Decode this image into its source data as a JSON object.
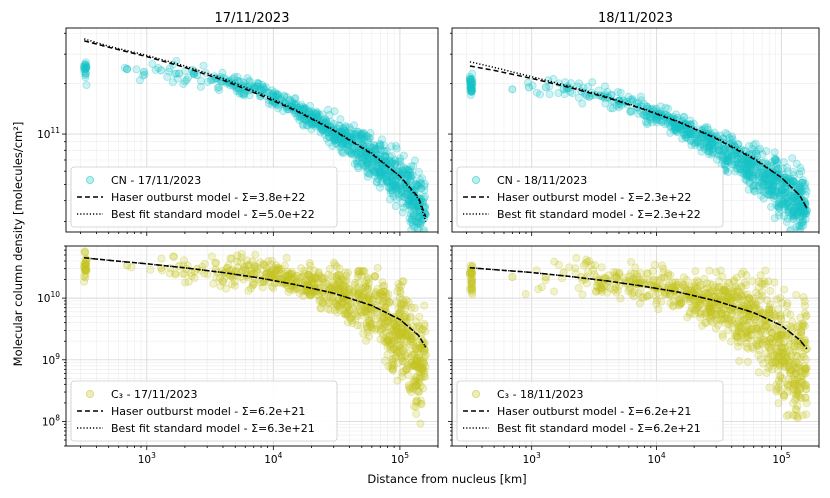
{
  "figure": {
    "ylabel": "Molecular column density [molecules/cm²]",
    "xlabel": "Distance from nucleus [km]"
  },
  "colors": {
    "cn": "#17c2c7",
    "c3": "#c3c41f",
    "model": "#000000"
  },
  "chart_data": [
    {
      "type": "scatter",
      "title": "17/11/2023",
      "xscale": "log",
      "yscale": "log",
      "xlim": [
        230,
        200000
      ],
      "ylim": [
        26000000000.0,
        430000000000.0
      ],
      "xticks": [],
      "yticks": [
        {
          "value": 100000000000.0,
          "label": "10",
          "exp": "11"
        }
      ],
      "grid": true,
      "legend_position": "lower left",
      "series": [
        {
          "name": "CN - 17/11/2023",
          "kind": "points",
          "marker": "circle",
          "color": "#17c2c7",
          "peak": 290000000000.0,
          "falloff": 1.25,
          "scatter": 0.06,
          "x": [
            320,
            330,
            700,
            950,
            1300,
            1800,
            2500,
            3500,
            5000,
            7000,
            10000,
            14000,
            20000,
            28000,
            40000,
            55000,
            75000,
            100000,
            130000,
            160000
          ],
          "y": [
            250000000000.0,
            230000000000.0,
            245000000000.0,
            235000000000.0,
            240000000000.0,
            230000000000.0,
            225000000000.0,
            215000000000.0,
            200000000000.0,
            185000000000.0,
            165000000000.0,
            145000000000.0,
            125000000000.0,
            107000000000.0,
            90000000000.0,
            75000000000.0,
            62000000000.0,
            50000000000.0,
            42000000000.0,
            33000000000.0
          ]
        },
        {
          "name": "Haser outburst model - Σ=3.8e+22",
          "kind": "line",
          "dash": "dashed",
          "x": [
            320,
            500,
            1000,
            2000,
            4000,
            8000,
            15000,
            30000,
            60000,
            100000,
            140000,
            160000
          ],
          "y": [
            360000000000.0,
            330000000000.0,
            290000000000.0,
            250000000000.0,
            210000000000.0,
            170000000000.0,
            138000000000.0,
            105000000000.0,
            76000000000.0,
            56000000000.0,
            42000000000.0,
            32000000000.0
          ]
        },
        {
          "name": "Best fit standard model - Σ=5.0e+22",
          "kind": "line",
          "dash": "dotted",
          "x": [
            320,
            500,
            1000,
            2000,
            4000,
            8000,
            15000,
            30000,
            60000,
            100000,
            140000,
            160000
          ],
          "y": [
            370000000000.0,
            335000000000.0,
            295000000000.0,
            255000000000.0,
            215000000000.0,
            174000000000.0,
            140000000000.0,
            106000000000.0,
            77000000000.0,
            56000000000.0,
            41000000000.0,
            30000000000.0
          ]
        }
      ]
    },
    {
      "type": "scatter",
      "title": "18/11/2023",
      "xscale": "log",
      "yscale": "log",
      "xlim": [
        230,
        200000
      ],
      "ylim": [
        26000000000.0,
        430000000000.0
      ],
      "xticks": [],
      "yticks": [],
      "grid": true,
      "legend_position": "lower left",
      "series": [
        {
          "name": "CN - 18/11/2023",
          "kind": "points",
          "marker": "circle",
          "color": "#17c2c7",
          "peak": 220000000000.0,
          "falloff": 1.4,
          "scatter": 0.06,
          "x": [
            320,
            330,
            700,
            950,
            1300,
            1800,
            2500,
            3500,
            5000,
            7000,
            10000,
            14000,
            20000,
            28000,
            40000,
            55000,
            75000,
            100000,
            130000,
            160000
          ],
          "y": [
            210000000000.0,
            195000000000.0,
            185000000000.0,
            190000000000.0,
            190000000000.0,
            185000000000.0,
            180000000000.0,
            170000000000.0,
            158000000000.0,
            145000000000.0,
            130000000000.0,
            115000000000.0,
            100000000000.0,
            88000000000.0,
            76000000000.0,
            65000000000.0,
            55000000000.0,
            47000000000.0,
            40000000000.0,
            35000000000.0
          ]
        },
        {
          "name": "Haser outburst model - Σ=2.3e+22",
          "kind": "line",
          "dash": "dashed",
          "x": [
            320,
            500,
            1000,
            2000,
            4000,
            8000,
            15000,
            30000,
            60000,
            100000,
            140000,
            160000
          ],
          "y": [
            255000000000.0,
            240000000000.0,
            215000000000.0,
            190000000000.0,
            165000000000.0,
            140000000000.0,
            118000000000.0,
            94000000000.0,
            71000000000.0,
            55000000000.0,
            43000000000.0,
            36000000000.0
          ]
        },
        {
          "name": "Best fit standard model - Σ=2.3e+22",
          "kind": "line",
          "dash": "dotted",
          "x": [
            320,
            500,
            1000,
            2000,
            4000,
            8000,
            15000,
            30000,
            60000,
            100000,
            140000,
            160000
          ],
          "y": [
            270000000000.0,
            250000000000.0,
            220000000000.0,
            193000000000.0,
            167000000000.0,
            141000000000.0,
            119000000000.0,
            95000000000.0,
            72000000000.0,
            55000000000.0,
            43000000000.0,
            36000000000.0
          ]
        }
      ]
    },
    {
      "type": "scatter",
      "title": "",
      "xscale": "log",
      "yscale": "log",
      "xlim": [
        230,
        200000
      ],
      "ylim": [
        40000000.0,
        70000000000.0
      ],
      "xticks": [
        {
          "value": 1000,
          "label": "10",
          "exp": "3"
        },
        {
          "value": 10000,
          "label": "10",
          "exp": "4"
        },
        {
          "value": 100000,
          "label": "10",
          "exp": "5"
        }
      ],
      "yticks": [
        {
          "value": 100000000.0,
          "label": "10",
          "exp": "8"
        },
        {
          "value": 1000000000.0,
          "label": "10",
          "exp": "9"
        },
        {
          "value": 10000000000.0,
          "label": "10",
          "exp": "10"
        }
      ],
      "grid": true,
      "legend_position": "lower left",
      "series": [
        {
          "name": "C₃ - 17/11/2023",
          "kind": "points",
          "marker": "circle",
          "color": "#c3c41f",
          "peak": 33000000000.0,
          "falloff": 1.7,
          "scatter": 0.25,
          "x": [
            320,
            330,
            700,
            1300,
            1800,
            2500,
            3500,
            5000,
            7000,
            10000,
            14000,
            20000,
            28000,
            40000,
            55000,
            75000,
            90000,
            100000,
            130000,
            160000
          ],
          "y": [
            32000000000.0,
            29000000000.0,
            34000000000.0,
            31000000000.0,
            33000000000.0,
            30000000000.0,
            29000000000.0,
            27000000000.0,
            25000000000.0,
            23000000000.0,
            20000000000.0,
            17000000000.0,
            14000000000.0,
            11000000000.0,
            8000000000.0,
            6000000000.0,
            1500000000.0,
            4000000000.0,
            800000000.0,
            1200000000.0
          ]
        },
        {
          "name": "Haser outburst model - Σ=6.2e+21",
          "kind": "line",
          "dash": "dashed",
          "x": [
            320,
            500,
            1000,
            2000,
            4000,
            8000,
            15000,
            30000,
            60000,
            100000,
            140000,
            160000
          ],
          "y": [
            45000000000.0,
            41000000000.0,
            36000000000.0,
            31000000000.0,
            26000000000.0,
            21000000000.0,
            16500000000.0,
            12000000000.0,
            7600000000.0,
            4500000000.0,
            2500000000.0,
            1600000000.0
          ]
        },
        {
          "name": "Best fit standard model - Σ=6.3e+21",
          "kind": "line",
          "dash": "dotted",
          "x": [
            320,
            500,
            1000,
            2000,
            4000,
            8000,
            15000,
            30000,
            60000,
            100000,
            140000,
            160000
          ],
          "y": [
            45000000000.0,
            41000000000.0,
            36000000000.0,
            31000000000.0,
            26000000000.0,
            21000000000.0,
            16500000000.0,
            12000000000.0,
            7600000000.0,
            4500000000.0,
            2500000000.0,
            1600000000.0
          ]
        }
      ]
    },
    {
      "type": "scatter",
      "title": "",
      "xscale": "log",
      "yscale": "log",
      "xlim": [
        230,
        200000
      ],
      "ylim": [
        40000000.0,
        70000000000.0
      ],
      "xticks": [
        {
          "value": 1000,
          "label": "10",
          "exp": "3"
        },
        {
          "value": 10000,
          "label": "10",
          "exp": "4"
        },
        {
          "value": 100000,
          "label": "10",
          "exp": "5"
        }
      ],
      "yticks": [],
      "grid": true,
      "legend_position": "lower left",
      "series": [
        {
          "name": "C₃ - 18/11/2023",
          "kind": "points",
          "marker": "circle",
          "color": "#c3c41f",
          "peak": 24000000000.0,
          "falloff": 1.6,
          "scatter": 0.3,
          "x": [
            320,
            330,
            700,
            1300,
            1800,
            2500,
            3500,
            5000,
            7000,
            10000,
            14000,
            20000,
            28000,
            40000,
            55000,
            75000,
            90000,
            100000,
            130000,
            160000
          ],
          "y": [
            25000000000.0,
            20000000000.0,
            22000000000.0,
            22000000000.0,
            26000000000.0,
            22000000000.0,
            20000000000.0,
            19000000000.0,
            17000000000.0,
            15000000000.0,
            13000000000.0,
            11000000000.0,
            9000000000.0,
            7000000000.0,
            5000000000.0,
            3500000000.0,
            1500000000.0,
            2500000000.0,
            600000000.0,
            1500000000.0
          ]
        },
        {
          "name": "Haser outburst model - Σ=6.2e+21",
          "kind": "line",
          "dash": "dashed",
          "x": [
            320,
            500,
            1000,
            2000,
            4000,
            8000,
            15000,
            30000,
            60000,
            100000,
            140000,
            160000
          ],
          "y": [
            31000000000.0,
            29000000000.0,
            26000000000.0,
            22500000000.0,
            19000000000.0,
            15500000000.0,
            12500000000.0,
            9000000000.0,
            5800000000.0,
            3600000000.0,
            2100000000.0,
            1500000000.0
          ]
        },
        {
          "name": "Best fit standard model - Σ=6.2e+21",
          "kind": "line",
          "dash": "dotted",
          "x": [
            320,
            500,
            1000,
            2000,
            4000,
            8000,
            15000,
            30000,
            60000,
            100000,
            140000,
            160000
          ],
          "y": [
            31000000000.0,
            29000000000.0,
            26000000000.0,
            22500000000.0,
            19000000000.0,
            15500000000.0,
            12500000000.0,
            9000000000.0,
            5800000000.0,
            3600000000.0,
            2100000000.0,
            1500000000.0
          ]
        }
      ]
    }
  ]
}
